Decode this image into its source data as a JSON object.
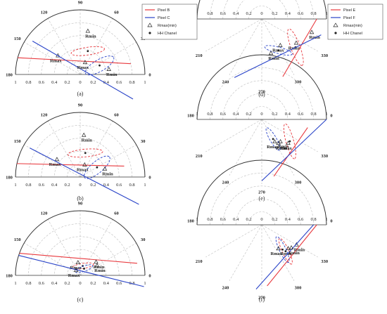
{
  "figure": {
    "panels": [
      {
        "id": "a",
        "label": "(a)",
        "half": "upper",
        "tick_labels": [
          "1",
          "0.8",
          "0.6",
          "0.4",
          "0.2",
          "0",
          "0.2",
          "0.4",
          "0.6",
          "0.8",
          "1"
        ],
        "angle_labels": [
          "0",
          "30",
          "60",
          "90",
          "120",
          "150",
          "180"
        ]
      },
      {
        "id": "b",
        "label": "(b)",
        "half": "upper",
        "tick_labels": [
          "1",
          "0.8",
          "0.6",
          "0.4",
          "0.2",
          "0",
          "0.2",
          "0.4",
          "0.6",
          "0.8",
          "1"
        ],
        "angle_labels": [
          "0",
          "30",
          "60",
          "90",
          "120",
          "150",
          "180"
        ]
      },
      {
        "id": "c",
        "label": "(c)",
        "half": "upper",
        "tick_labels": [
          "1",
          "0.8",
          "0.6",
          "0.4",
          "0.2",
          "0",
          "0.2",
          "0.4",
          "0.6",
          "0.8",
          "1"
        ],
        "angle_labels": [
          "0",
          "30",
          "60",
          "90",
          "120",
          "150",
          "180"
        ]
      },
      {
        "id": "d",
        "label": "(d)",
        "half": "lower",
        "tick_labels": [
          "1",
          "0.8",
          "0.6",
          "0.4",
          "0.2",
          "0",
          "0.2",
          "0.4",
          "0.6",
          "0.8",
          "1"
        ],
        "angle_labels": [
          "180",
          "210",
          "240",
          "270",
          "300",
          "330",
          "0"
        ]
      },
      {
        "id": "e",
        "label": "(e)",
        "half": "lower",
        "tick_labels": [
          "1",
          "0.8",
          "0.6",
          "0.4",
          "0.2",
          "0",
          "0.2",
          "0.4",
          "0.6",
          "0.8",
          "1"
        ],
        "angle_labels": [
          "180",
          "210",
          "240",
          "270",
          "300",
          "330",
          "0"
        ]
      },
      {
        "id": "f",
        "label": "(f)",
        "half": "lower",
        "tick_labels": [
          "1",
          "0.8",
          "0.6",
          "0.4",
          "0.2",
          "0",
          "0.2",
          "0.4",
          "0.6",
          "0.8",
          "1"
        ],
        "angle_labels": [
          "180",
          "210",
          "240",
          "270",
          "300",
          "330",
          "0"
        ]
      }
    ],
    "legends": [
      {
        "panel": "a",
        "entries": [
          {
            "label": "Pixel B",
            "kind": "line",
            "color": "#e8383d"
          },
          {
            "label": "Pixel C",
            "kind": "line",
            "color": "#2a44c8"
          },
          {
            "label": "Rmax(min)",
            "kind": "triangle",
            "color": "#222222"
          },
          {
            "label": "HH Chanel",
            "kind": "star",
            "color": "#222222"
          }
        ]
      },
      {
        "panel": "d",
        "entries": [
          {
            "label": "Pixel E",
            "kind": "line",
            "color": "#e8383d"
          },
          {
            "label": "Pixel F",
            "kind": "line",
            "color": "#2a44c8"
          },
          {
            "label": "Rmax(min)",
            "kind": "triangle",
            "color": "#222222"
          },
          {
            "label": "HH Chanel",
            "kind": "star",
            "color": "#222222"
          }
        ]
      }
    ]
  },
  "chart_data": [
    {
      "panel": "a",
      "type": "polar-line",
      "series": [
        {
          "name": "Pixel B",
          "color": "#e8383d",
          "line": [
            [
              1.0,
              165
            ],
            [
              0.8,
              12
            ]
          ],
          "ellipse": {
            "center": [
              0.38,
              72
            ],
            "semi_major": 0.26,
            "semi_minor": 0.06,
            "angle_deg": -8
          },
          "rmax": [
            0.45,
            140
          ],
          "rmin": [
            0.68,
            80
          ],
          "rmax_label": "Rmax",
          "rmin_label": "Rmin"
        },
        {
          "name": "Pixel C",
          "color": "#2a44c8",
          "line": [
            [
              0.9,
              145
            ],
            [
              0.9,
              -25
            ]
          ],
          "ellipse": {
            "center": [
              0.33,
              25
            ],
            "semi_major": 0.25,
            "semi_minor": 0.09,
            "angle_deg": -30
          },
          "rmax": [
            0.2,
            68
          ],
          "rmin": [
            0.45,
            10
          ],
          "rmax_label": "Rmax",
          "rmin_label": "Rmin"
        }
      ]
    },
    {
      "panel": "b",
      "type": "polar-line",
      "series": [
        {
          "name": "Pixel B",
          "color": "#e8383d",
          "line": [
            [
              1.0,
              168
            ],
            [
              0.7,
              14
            ]
          ],
          "ellipse": {
            "center": [
              0.38,
              78
            ],
            "semi_major": 0.27,
            "semi_minor": 0.06,
            "angle_deg": -5
          },
          "rmax": [
            0.45,
            143
          ],
          "rmin": [
            0.65,
            85
          ],
          "rmax_label": "Rmax",
          "rmin_label": "Rmin"
        },
        {
          "name": "Pixel C",
          "color": "#2a44c8",
          "line": [
            [
              0.9,
              150
            ],
            [
              1.0,
              -25
            ]
          ],
          "ellipse": {
            "center": [
              0.3,
              30
            ],
            "semi_major": 0.25,
            "semi_minor": 0.09,
            "angle_deg": -40
          },
          "rmax": [
            0.2,
            70
          ],
          "rmin": [
            0.4,
            18
          ],
          "rmax_label": "Rmax",
          "rmin_label": "Rmin"
        }
      ]
    },
    {
      "panel": "c",
      "type": "polar-line",
      "series": [
        {
          "name": "Pixel B",
          "color": "#e8383d",
          "line": [
            [
              1.0,
              160
            ],
            [
              0.9,
              12
            ]
          ],
          "ellipse": {
            "center": [
              0.15,
              75
            ],
            "semi_major": 0.17,
            "semi_minor": 0.04,
            "angle_deg": -10
          },
          "rmax": [
            0.2,
            100
          ],
          "rmin": [
            0.32,
            40
          ],
          "rmax_label": "Rmax",
          "rmin_label": "Rmin"
        },
        {
          "name": "Pixel C",
          "color": "#2a44c8",
          "line": [
            [
              1.0,
              162
            ],
            [
              1.0,
              -10
            ]
          ],
          "ellipse": {
            "center": [
              0.12,
              60
            ],
            "semi_major": 0.14,
            "semi_minor": 0.04,
            "angle_deg": -20
          },
          "rmax": [
            0.1,
            130
          ],
          "rmin": [
            0.3,
            30
          ],
          "rmax_label": "Rmax",
          "rmin_label": "Rmin"
        }
      ]
    },
    {
      "panel": "d",
      "type": "polar-line",
      "series": [
        {
          "name": "Pixel E",
          "color": "#e8383d",
          "line": [
            [
              0.85,
              0
            ],
            [
              0.95,
              290
            ]
          ],
          "ellipse": {
            "center": [
              0.68,
              320
            ],
            "semi_major": 0.3,
            "semi_minor": 0.07,
            "angle_deg": 70
          },
          "rmax": [
            0.65,
            325
          ],
          "rmin": [
            0.8,
            345
          ],
          "rmax_label": "Rmax",
          "rmin_label": "Rmin"
        },
        {
          "name": "Pixel F",
          "color": "#2a44c8",
          "line": [
            [
              1.0,
              245
            ],
            [
              0.95,
              345
            ]
          ],
          "ellipse": {
            "center": [
              0.55,
              298
            ],
            "semi_major": 0.22,
            "semi_minor": 0.05,
            "angle_deg": 15
          },
          "rmax": [
            0.5,
            305
          ],
          "rmin": [
            0.55,
            285
          ],
          "rmax_label": "Rmax",
          "rmin_label": "Rmin"
        }
      ]
    },
    {
      "panel": "e",
      "type": "polar-line",
      "series": [
        {
          "name": "Pixel E",
          "color": "#e8383d",
          "line": [
            [
              0.72,
              350
            ],
            [
              0.9,
              282
            ]
          ],
          "ellipse": {
            "center": [
              0.55,
              322
            ],
            "semi_major": 0.28,
            "semi_minor": 0.06,
            "angle_deg": 75
          },
          "rmax": [
            0.55,
            318
          ],
          "rmin": [
            0.45,
            305
          ],
          "rmax_label": "Rmax",
          "rmin_label": "Rmin"
        },
        {
          "name": "Pixel F",
          "color": "#2a44c8",
          "line": [
            [
              1.0,
              0
            ],
            [
              0.95,
              270
            ]
          ],
          "ellipse": {
            "center": [
              0.35,
              300
            ],
            "semi_major": 0.2,
            "semi_minor": 0.05,
            "angle_deg": 60
          },
          "rmax": [
            0.4,
            300
          ],
          "rmin": [
            0.45,
            310
          ],
          "rmax_label": "Rmax",
          "rmin_label": "Rmin"
        }
      ]
    },
    {
      "panel": "f",
      "type": "polar-line",
      "series": [
        {
          "name": "Pixel E",
          "color": "#e8383d",
          "line": [
            [
              0.85,
              0
            ],
            [
              0.95,
              275
            ]
          ],
          "ellipse": {
            "center": [
              0.55,
              312
            ],
            "semi_major": 0.22,
            "semi_minor": 0.05,
            "angle_deg": 65
          },
          "rmax": [
            0.55,
            318
          ],
          "rmin": [
            0.62,
            330
          ],
          "rmax_label": "Rmax",
          "rmin_label": "Rmin"
        },
        {
          "name": "Pixel F",
          "color": "#2a44c8",
          "line": [
            [
              0.8,
              0
            ],
            [
              1.0,
              265
            ]
          ],
          "ellipse": {
            "center": [
              0.5,
              310
            ],
            "semi_major": 0.22,
            "semi_minor": 0.05,
            "angle_deg": 65
          },
          "rmax": [
            0.45,
            305
          ],
          "rmin": [
            0.58,
            322
          ],
          "rmax_label": "Rmax",
          "rmin_label": "Rmin"
        }
      ]
    }
  ]
}
